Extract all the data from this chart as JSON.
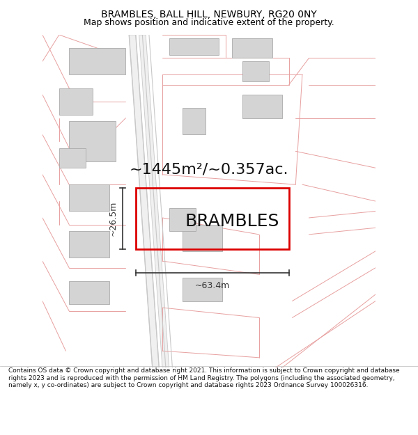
{
  "title": "BRAMBLES, BALL HILL, NEWBURY, RG20 0NY",
  "subtitle": "Map shows position and indicative extent of the property.",
  "property_label": "BRAMBLES",
  "area_label": "~1445m²/~0.357ac.",
  "width_label": "~63.4m",
  "height_label": "~26.5m",
  "footer": "Contains OS data © Crown copyright and database right 2021. This information is subject to Crown copyright and database rights 2023 and is reproduced with the permission of HM Land Registry. The polygons (including the associated geometry, namely x, y co-ordinates) are subject to Crown copyright and database rights 2023 Ordnance Survey 100026316.",
  "bg_color": "#ffffff",
  "map_bg": "#ffffff",
  "line_color": "#e8a0a0",
  "road_gray": "#c8c8c8",
  "building_color": "#d4d4d4",
  "building_edge": "#aaaaaa",
  "plot_color": "#dd0000",
  "dim_color": "#333333",
  "title_color": "#000000",
  "title_fontsize": 10,
  "subtitle_fontsize": 9,
  "area_fontsize": 16,
  "label_fontsize": 18,
  "dim_fontsize": 9,
  "footer_fontsize": 6.5
}
